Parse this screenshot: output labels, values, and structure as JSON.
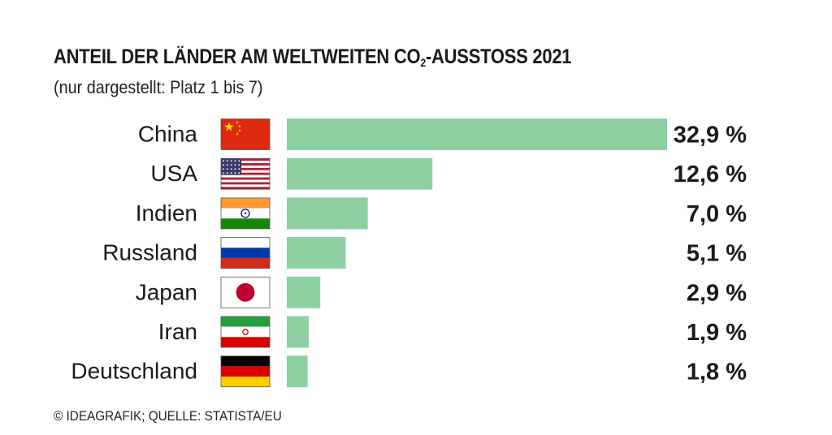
{
  "title_main": "ANTEIL DER LÄNDER AM WELTWEITEN CO",
  "title_sub": "2",
  "title_rest": "-AUSSTOSS 2021",
  "subtitle": "(nur dargestellt: Platz 1 bis 7)",
  "footer": "© IDEAGRAFIK; QUELLE: STATISTA/EU",
  "colors": {
    "bar": "#8fd0a2",
    "text": "#1a1a1a"
  },
  "chart_data": {
    "type": "bar",
    "orientation": "horizontal",
    "title": "ANTEIL DER LÄNDER AM WELTWEITEN CO2-AUSSTOSS 2021",
    "subtitle": "(nur dargestellt: Platz 1 bis 7)",
    "categories": [
      "China",
      "USA",
      "Indien",
      "Russland",
      "Japan",
      "Iran",
      "Deutschland"
    ],
    "flags": [
      "china-flag-icon",
      "usa-flag-icon",
      "india-flag-icon",
      "russia-flag-icon",
      "japan-flag-icon",
      "iran-flag-icon",
      "germany-flag-icon"
    ],
    "values": [
      32.9,
      12.6,
      7.0,
      5.1,
      2.9,
      1.9,
      1.8
    ],
    "value_labels": [
      "32,9 %",
      "12,6 %",
      "7,0 %",
      "5,1 %",
      "2,9 %",
      "1,9 %",
      "1,8 %"
    ],
    "xlim": [
      0,
      32.9
    ],
    "grid": false,
    "legend": "none"
  }
}
